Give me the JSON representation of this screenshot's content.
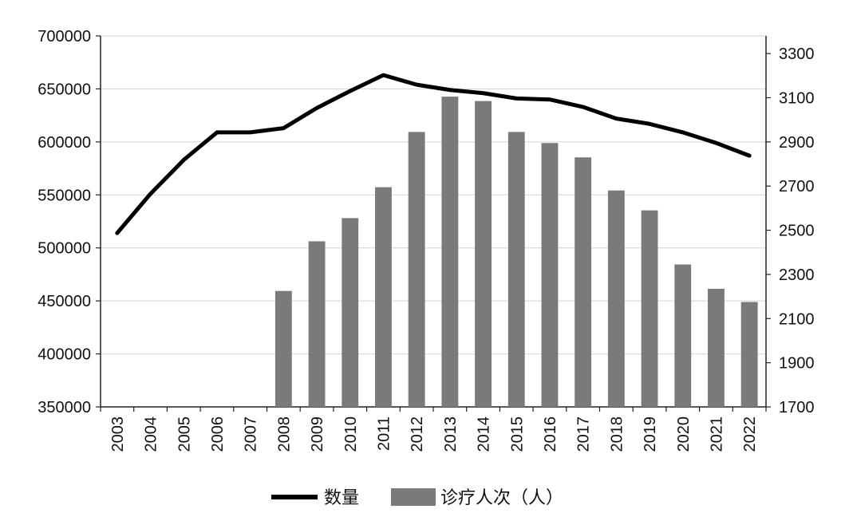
{
  "chart_data": {
    "type": "bar+line",
    "categories": [
      "2003",
      "2004",
      "2005",
      "2006",
      "2007",
      "2008",
      "2009",
      "2010",
      "2011",
      "2012",
      "2013",
      "2014",
      "2015",
      "2016",
      "2017",
      "2018",
      "2019",
      "2020",
      "2021",
      "2022"
    ],
    "series": [
      {
        "name": "数量",
        "type": "line",
        "axis": "left",
        "color": "#000000",
        "values": [
          514000,
          551000,
          583000,
          609000,
          609000,
          613000,
          632000,
          648000,
          663000,
          654000,
          649000,
          646000,
          641000,
          640000,
          633000,
          622000,
          617000,
          609000,
          599000,
          587000
        ]
      },
      {
        "name": "诊疗人次（人）",
        "type": "bar",
        "axis": "right",
        "color": "#7a7a7a",
        "values": [
          null,
          null,
          null,
          null,
          null,
          2225,
          2450,
          2555,
          2695,
          2945,
          3105,
          3085,
          2945,
          2895,
          2830,
          2680,
          2590,
          2345,
          2235,
          2175
        ]
      }
    ],
    "y_left": {
      "min": 350000,
      "max": 700000,
      "ticks": [
        "350000",
        "400000",
        "450000",
        "500000",
        "550000",
        "600000",
        "650000",
        "700000"
      ]
    },
    "y_right": {
      "min": 1700,
      "max": 3380,
      "ticks": [
        "1700",
        "1900",
        "2100",
        "2300",
        "2500",
        "2700",
        "2900",
        "3100",
        "3300"
      ]
    },
    "grid": "horizontal",
    "legend_position": "bottom"
  },
  "legend": {
    "line_label": "数量",
    "bar_label": "诊疗人次（人）"
  }
}
